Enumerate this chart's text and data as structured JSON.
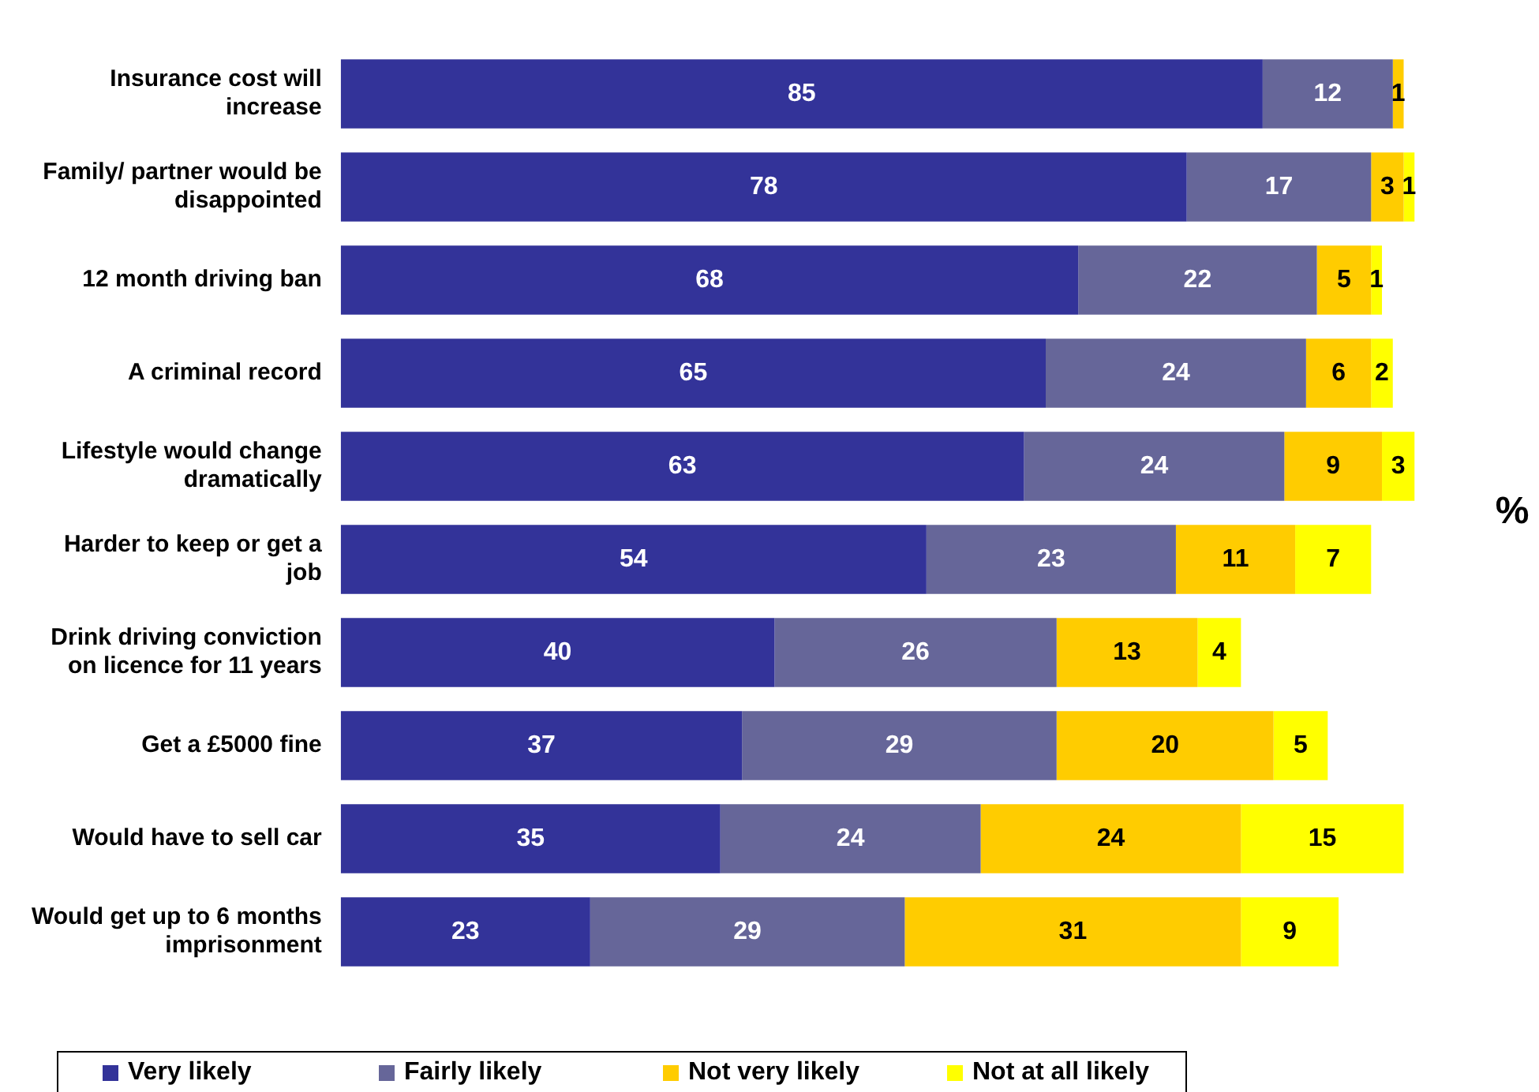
{
  "chart_data": {
    "type": "bar",
    "orientation": "horizontal",
    "stacked": true,
    "data_labels": true,
    "grid": false,
    "legend": "bottom",
    "categories": [
      "Insurance cost will increase",
      "Family/ partner would be disappointed",
      "12 month driving ban",
      "A criminal record",
      "Lifestyle would change dramatically",
      "Harder to keep or get a job",
      "Drink driving conviction on licence for 11 years",
      "Get a £5000 fine",
      "Would have to sell car",
      "Would get up to 6 months imprisonment"
    ],
    "series": [
      {
        "name": "Very likely",
        "color": "#333399",
        "values": [
          85,
          78,
          68,
          65,
          63,
          54,
          40,
          37,
          35,
          23
        ]
      },
      {
        "name": "Fairly likely",
        "color": "#666699",
        "values": [
          12,
          17,
          22,
          24,
          24,
          23,
          26,
          29,
          24,
          29
        ]
      },
      {
        "name": "Not very likely",
        "color": "#ffcc00",
        "values": [
          1,
          3,
          5,
          6,
          9,
          11,
          13,
          20,
          24,
          31
        ]
      },
      {
        "name": "Not at all likely",
        "color": "#ffff00",
        "values": [
          null,
          1,
          1,
          2,
          3,
          7,
          4,
          5,
          15,
          9
        ]
      }
    ],
    "annotations": [
      "%"
    ]
  }
}
